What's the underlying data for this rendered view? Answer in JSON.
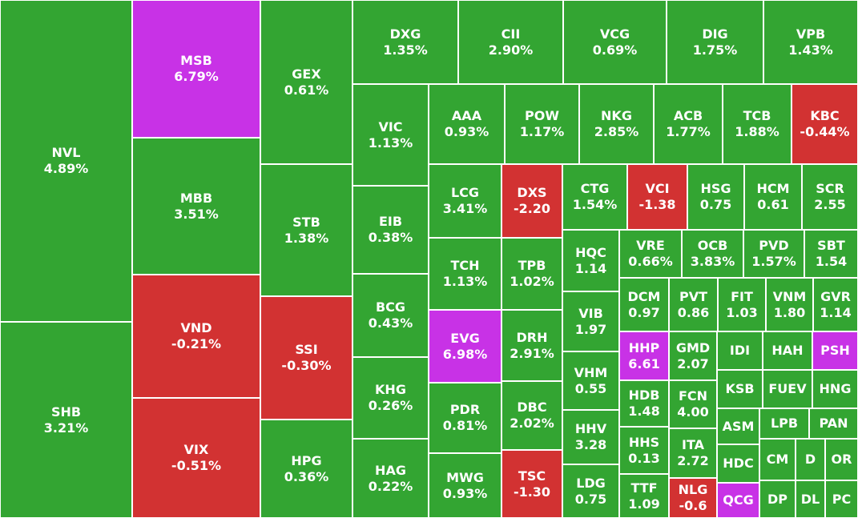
{
  "colors": {
    "up": "#33a532",
    "down": "#d23232",
    "ceiling": "#c832e6",
    "border": "#ffffff"
  },
  "chart_data": {
    "type": "treemap",
    "items": [
      {
        "ticker": "NVL",
        "change": "4.89%",
        "value": 4.89,
        "status": "up"
      },
      {
        "ticker": "SHB",
        "change": "3.21%",
        "value": 3.21,
        "status": "up"
      },
      {
        "ticker": "MSB",
        "change": "6.79%",
        "value": 6.79,
        "status": "ceiling"
      },
      {
        "ticker": "MBB",
        "change": "3.51%",
        "value": 3.51,
        "status": "up"
      },
      {
        "ticker": "VND",
        "change": "-0.21%",
        "value": -0.21,
        "status": "down"
      },
      {
        "ticker": "VIX",
        "change": "-0.51%",
        "value": -0.51,
        "status": "down"
      },
      {
        "ticker": "GEX",
        "change": "0.61%",
        "value": 0.61,
        "status": "up"
      },
      {
        "ticker": "STB",
        "change": "1.38%",
        "value": 1.38,
        "status": "up"
      },
      {
        "ticker": "SSI",
        "change": "-0.30%",
        "value": -0.3,
        "status": "down"
      },
      {
        "ticker": "HPG",
        "change": "0.36%",
        "value": 0.36,
        "status": "up"
      },
      {
        "ticker": "DXG",
        "change": "1.35%",
        "value": 1.35,
        "status": "up"
      },
      {
        "ticker": "CII",
        "change": "2.90%",
        "value": 2.9,
        "status": "up"
      },
      {
        "ticker": "VCG",
        "change": "0.69%",
        "value": 0.69,
        "status": "up"
      },
      {
        "ticker": "DIG",
        "change": "1.75%",
        "value": 1.75,
        "status": "up"
      },
      {
        "ticker": "VPB",
        "change": "1.43%",
        "value": 1.43,
        "status": "up"
      },
      {
        "ticker": "VIC",
        "change": "1.13%",
        "value": 1.13,
        "status": "up"
      },
      {
        "ticker": "EIB",
        "change": "0.38%",
        "value": 0.38,
        "status": "up"
      },
      {
        "ticker": "BCG",
        "change": "0.43%",
        "value": 0.43,
        "status": "up"
      },
      {
        "ticker": "KHG",
        "change": "0.26%",
        "value": 0.26,
        "status": "up"
      },
      {
        "ticker": "HAG",
        "change": "0.22%",
        "value": 0.22,
        "status": "up"
      },
      {
        "ticker": "AAA",
        "change": "0.93%",
        "value": 0.93,
        "status": "up"
      },
      {
        "ticker": "POW",
        "change": "1.17%",
        "value": 1.17,
        "status": "up"
      },
      {
        "ticker": "NKG",
        "change": "2.85%",
        "value": 2.85,
        "status": "up"
      },
      {
        "ticker": "ACB",
        "change": "1.77%",
        "value": 1.77,
        "status": "up"
      },
      {
        "ticker": "TCB",
        "change": "1.88%",
        "value": 1.88,
        "status": "up"
      },
      {
        "ticker": "KBC",
        "change": "-0.44%",
        "value": -0.44,
        "status": "down"
      },
      {
        "ticker": "LCG",
        "change": "3.41%",
        "value": 3.41,
        "status": "up"
      },
      {
        "ticker": "DXS",
        "change": "-2.20",
        "value": -2.2,
        "status": "down"
      },
      {
        "ticker": "TCH",
        "change": "1.13%",
        "value": 1.13,
        "status": "up"
      },
      {
        "ticker": "TPB",
        "change": "1.02%",
        "value": 1.02,
        "status": "up"
      },
      {
        "ticker": "EVG",
        "change": "6.98%",
        "value": 6.98,
        "status": "ceiling"
      },
      {
        "ticker": "DRH",
        "change": "2.91%",
        "value": 2.91,
        "status": "up"
      },
      {
        "ticker": "PDR",
        "change": "0.81%",
        "value": 0.81,
        "status": "up"
      },
      {
        "ticker": "DBC",
        "change": "2.02%",
        "value": 2.02,
        "status": "up"
      },
      {
        "ticker": "MWG",
        "change": "0.93%",
        "value": 0.93,
        "status": "up"
      },
      {
        "ticker": "TSC",
        "change": "-1.30",
        "value": -1.3,
        "status": "down"
      },
      {
        "ticker": "CTG",
        "change": "1.54%",
        "value": 1.54,
        "status": "up"
      },
      {
        "ticker": "VCI",
        "change": "-1.38",
        "value": -1.38,
        "status": "down"
      },
      {
        "ticker": "HSG",
        "change": "0.75",
        "value": 0.75,
        "status": "up"
      },
      {
        "ticker": "HCM",
        "change": "0.61",
        "value": 0.61,
        "status": "up"
      },
      {
        "ticker": "SCR",
        "change": "2.55",
        "value": 2.55,
        "status": "up"
      },
      {
        "ticker": "HQC",
        "change": "1.14",
        "value": 1.14,
        "status": "up"
      },
      {
        "ticker": "VRE",
        "change": "0.66%",
        "value": 0.66,
        "status": "up"
      },
      {
        "ticker": "OCB",
        "change": "3.83%",
        "value": 3.83,
        "status": "up"
      },
      {
        "ticker": "PVD",
        "change": "1.57%",
        "value": 1.57,
        "status": "up"
      },
      {
        "ticker": "SBT",
        "change": "1.54",
        "value": 1.54,
        "status": "up"
      },
      {
        "ticker": "VIB",
        "change": "1.97",
        "value": 1.97,
        "status": "up"
      },
      {
        "ticker": "DCM",
        "change": "0.97",
        "value": 0.97,
        "status": "up"
      },
      {
        "ticker": "PVT",
        "change": "0.86",
        "value": 0.86,
        "status": "up"
      },
      {
        "ticker": "FIT",
        "change": "1.03",
        "value": 1.03,
        "status": "up"
      },
      {
        "ticker": "VNM",
        "change": "1.80",
        "value": 1.8,
        "status": "up"
      },
      {
        "ticker": "GVR",
        "change": "1.14",
        "value": 1.14,
        "status": "up"
      },
      {
        "ticker": "VHM",
        "change": "0.55",
        "value": 0.55,
        "status": "up"
      },
      {
        "ticker": "HHP",
        "change": "6.61",
        "value": 6.61,
        "status": "ceiling"
      },
      {
        "ticker": "GMD",
        "change": "2.07",
        "value": 2.07,
        "status": "up"
      },
      {
        "ticker": "IDI",
        "change": "",
        "value": null,
        "status": "up"
      },
      {
        "ticker": "HAH",
        "change": "",
        "value": null,
        "status": "up"
      },
      {
        "ticker": "PSH",
        "change": "",
        "value": null,
        "status": "ceiling"
      },
      {
        "ticker": "HDB",
        "change": "1.48",
        "value": 1.48,
        "status": "up"
      },
      {
        "ticker": "FCN",
        "change": "4.00",
        "value": 4.0,
        "status": "up"
      },
      {
        "ticker": "KSB",
        "change": "",
        "value": null,
        "status": "up"
      },
      {
        "ticker": "FUEV",
        "change": "",
        "value": null,
        "status": "up"
      },
      {
        "ticker": "HNG",
        "change": "",
        "value": null,
        "status": "up"
      },
      {
        "ticker": "HHV",
        "change": "3.28",
        "value": 3.28,
        "status": "up"
      },
      {
        "ticker": "HHS",
        "change": "0.13",
        "value": 0.13,
        "status": "up"
      },
      {
        "ticker": "ITA",
        "change": "2.72",
        "value": 2.72,
        "status": "up"
      },
      {
        "ticker": "ASM",
        "change": "",
        "value": null,
        "status": "up"
      },
      {
        "ticker": "LPB",
        "change": "",
        "value": null,
        "status": "up"
      },
      {
        "ticker": "PAN",
        "change": "",
        "value": null,
        "status": "up"
      },
      {
        "ticker": "HDC",
        "change": "",
        "value": null,
        "status": "up"
      },
      {
        "ticker": "CM",
        "change": "",
        "value": null,
        "status": "up"
      },
      {
        "ticker": "D",
        "change": "",
        "value": null,
        "status": "up"
      },
      {
        "ticker": "OR",
        "change": "",
        "value": null,
        "status": "up"
      },
      {
        "ticker": "LDG",
        "change": "0.75",
        "value": 0.75,
        "status": "up"
      },
      {
        "ticker": "TTF",
        "change": "1.09",
        "value": 1.09,
        "status": "up"
      },
      {
        "ticker": "NLG",
        "change": "-0.6",
        "value": -0.6,
        "status": "down"
      },
      {
        "ticker": "QCG",
        "change": "",
        "value": null,
        "status": "ceiling"
      },
      {
        "ticker": "DP",
        "change": "",
        "value": null,
        "status": "up"
      },
      {
        "ticker": "DL",
        "change": "",
        "value": null,
        "status": "up"
      },
      {
        "ticker": "PC",
        "change": "",
        "value": null,
        "status": "up"
      }
    ]
  }
}
